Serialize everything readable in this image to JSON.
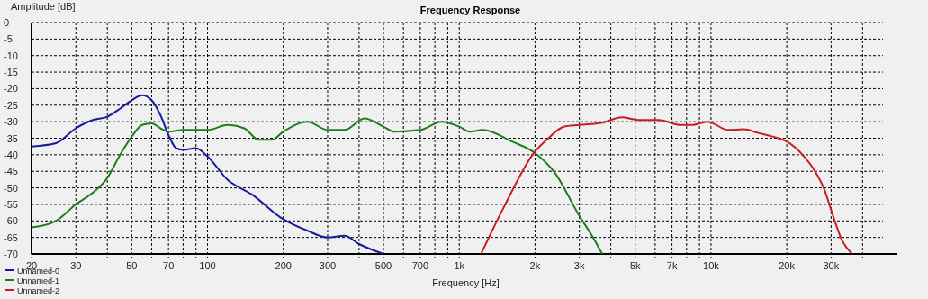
{
  "chart_data": {
    "type": "line",
    "title": "Frequency Response",
    "xlabel": "Frequency [Hz]",
    "ylabel": "Amplitude [dB]",
    "log": "x",
    "grid": true,
    "legend": "bottom left",
    "line_style": "solid",
    "marker": "none",
    "xlim": [
      20,
      55000
    ],
    "ylim": [
      -70,
      0
    ],
    "xticks": [
      20,
      30,
      {
        "value": 40,
        "label": null
      },
      50,
      {
        "value": 60,
        "label": null
      },
      70,
      {
        "value": 80,
        "label": null
      },
      {
        "value": 90,
        "label": null
      },
      100,
      200,
      300,
      {
        "value": 400,
        "label": null
      },
      500,
      {
        "value": 600,
        "label": null
      },
      700,
      {
        "value": 800,
        "label": null
      },
      {
        "value": 900,
        "label": null
      },
      {
        "value": 1000,
        "label": "1k"
      },
      {
        "value": 2000,
        "label": "2k"
      },
      {
        "value": 3000,
        "label": "3k"
      },
      {
        "value": 4000,
        "label": null
      },
      {
        "value": 5000,
        "label": "5k"
      },
      {
        "value": 6000,
        "label": null
      },
      {
        "value": 7000,
        "label": "7k"
      },
      {
        "value": 8000,
        "label": null
      },
      {
        "value": 9000,
        "label": null
      },
      {
        "value": 10000,
        "label": "10k"
      },
      {
        "value": 20000,
        "label": "20k"
      },
      {
        "value": 30000,
        "label": "30k"
      },
      {
        "value": 40000,
        "label": null
      }
    ],
    "yticks": [
      0,
      -5,
      -10,
      -15,
      -20,
      -25,
      -30,
      -35,
      -40,
      -45,
      -50,
      -55,
      -60,
      -65,
      -70
    ],
    "series": [
      {
        "name": "Unnamed-0",
        "color": "#1a1a9c",
        "x": [
          20,
          25,
          30,
          35,
          40,
          45,
          50,
          55,
          60,
          65,
          70,
          75,
          80,
          90,
          100,
          120,
          150,
          200,
          250,
          300,
          350,
          400,
          500
        ],
        "values": [
          -37.5,
          -36.5,
          -32,
          -29.5,
          -28.5,
          -26,
          -23.5,
          -22,
          -23.5,
          -28,
          -34,
          -38,
          -38.5,
          -38,
          -40.5,
          -47.5,
          -52,
          -59.5,
          -63,
          -65,
          -64.5,
          -67,
          -70
        ]
      },
      {
        "name": "Unnamed-1",
        "color": "#1e7d1e",
        "x": [
          20,
          25,
          30,
          35,
          40,
          45,
          50,
          55,
          60,
          65,
          70,
          80,
          100,
          120,
          140,
          160,
          180,
          200,
          250,
          300,
          350,
          420,
          500,
          550,
          700,
          850,
          1000,
          1100,
          1240,
          1620,
          2000,
          2400,
          3000,
          3400,
          3700
        ],
        "values": [
          -62,
          -60,
          -55,
          -51.5,
          -47,
          -40,
          -34.5,
          -31,
          -30.5,
          -32,
          -33,
          -32.5,
          -32.5,
          -31,
          -32,
          -35.5,
          -35.5,
          -33,
          -30,
          -32.5,
          -32.5,
          -29,
          -31.5,
          -33,
          -32.5,
          -30,
          -31.5,
          -33,
          -32.5,
          -36,
          -39.5,
          -45.5,
          -58.5,
          -65,
          -70
        ]
      },
      {
        "name": "Unnamed-2",
        "color": "#c81e1e",
        "x": [
          1220,
          1500,
          2000,
          2260,
          2600,
          3000,
          3700,
          4430,
          5140,
          6200,
          7560,
          8400,
          9700,
          11700,
          13500,
          15400,
          17600,
          20000,
          23100,
          25900,
          28200,
          30100,
          33200,
          36400
        ],
        "values": [
          -70,
          -56,
          -39,
          -35,
          -31.5,
          -31,
          -30.3,
          -28.7,
          -29.5,
          -29.5,
          -31,
          -31,
          -30,
          -32.5,
          -32.3,
          -33.4,
          -34.5,
          -36,
          -40,
          -45,
          -50.5,
          -57,
          -66,
          -70
        ]
      }
    ]
  }
}
